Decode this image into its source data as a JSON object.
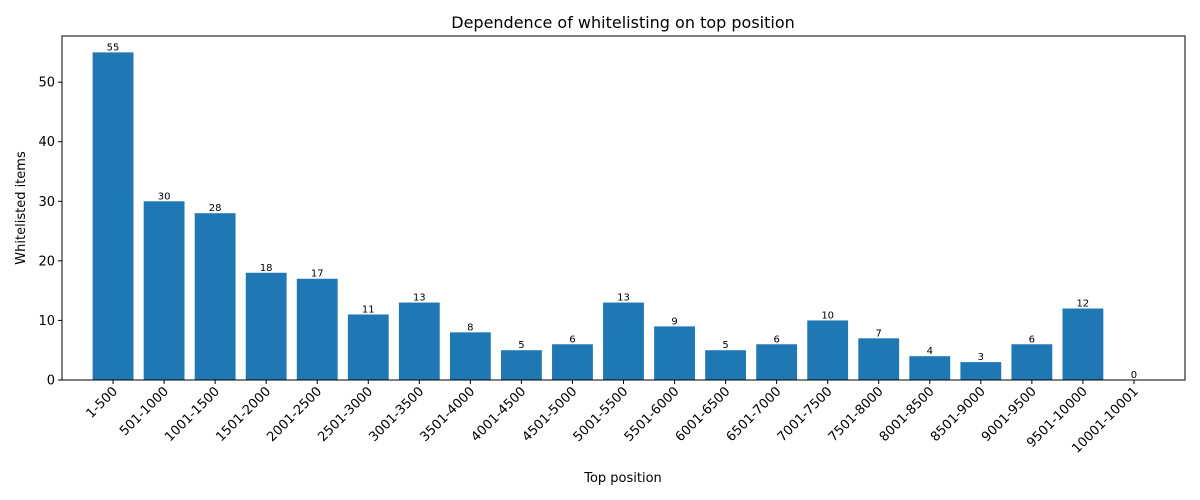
{
  "chart_data": {
    "type": "bar",
    "title": "Dependence of whitelisting on top position",
    "xlabel": "Top position",
    "ylabel": "Whitelisted items",
    "categories": [
      "1-500",
      "501-1000",
      "1001-1500",
      "1501-2000",
      "2001-2500",
      "2501-3000",
      "3001-3500",
      "3501-4000",
      "4001-4500",
      "4501-5000",
      "5001-5500",
      "5501-6000",
      "6001-6500",
      "6501-7000",
      "7001-7500",
      "7501-8000",
      "8001-8500",
      "8501-9000",
      "9001-9500",
      "9501-10000",
      "10001-10001"
    ],
    "values": [
      55,
      30,
      28,
      18,
      17,
      11,
      13,
      8,
      5,
      6,
      13,
      9,
      5,
      6,
      10,
      7,
      4,
      3,
      6,
      12,
      0
    ],
    "ylim": [
      0,
      57.75
    ],
    "yticks": [
      0,
      10,
      20,
      30,
      40,
      50
    ],
    "bar_color": "#1f77b4",
    "grid": false,
    "data_labels": true,
    "legend": "none"
  }
}
